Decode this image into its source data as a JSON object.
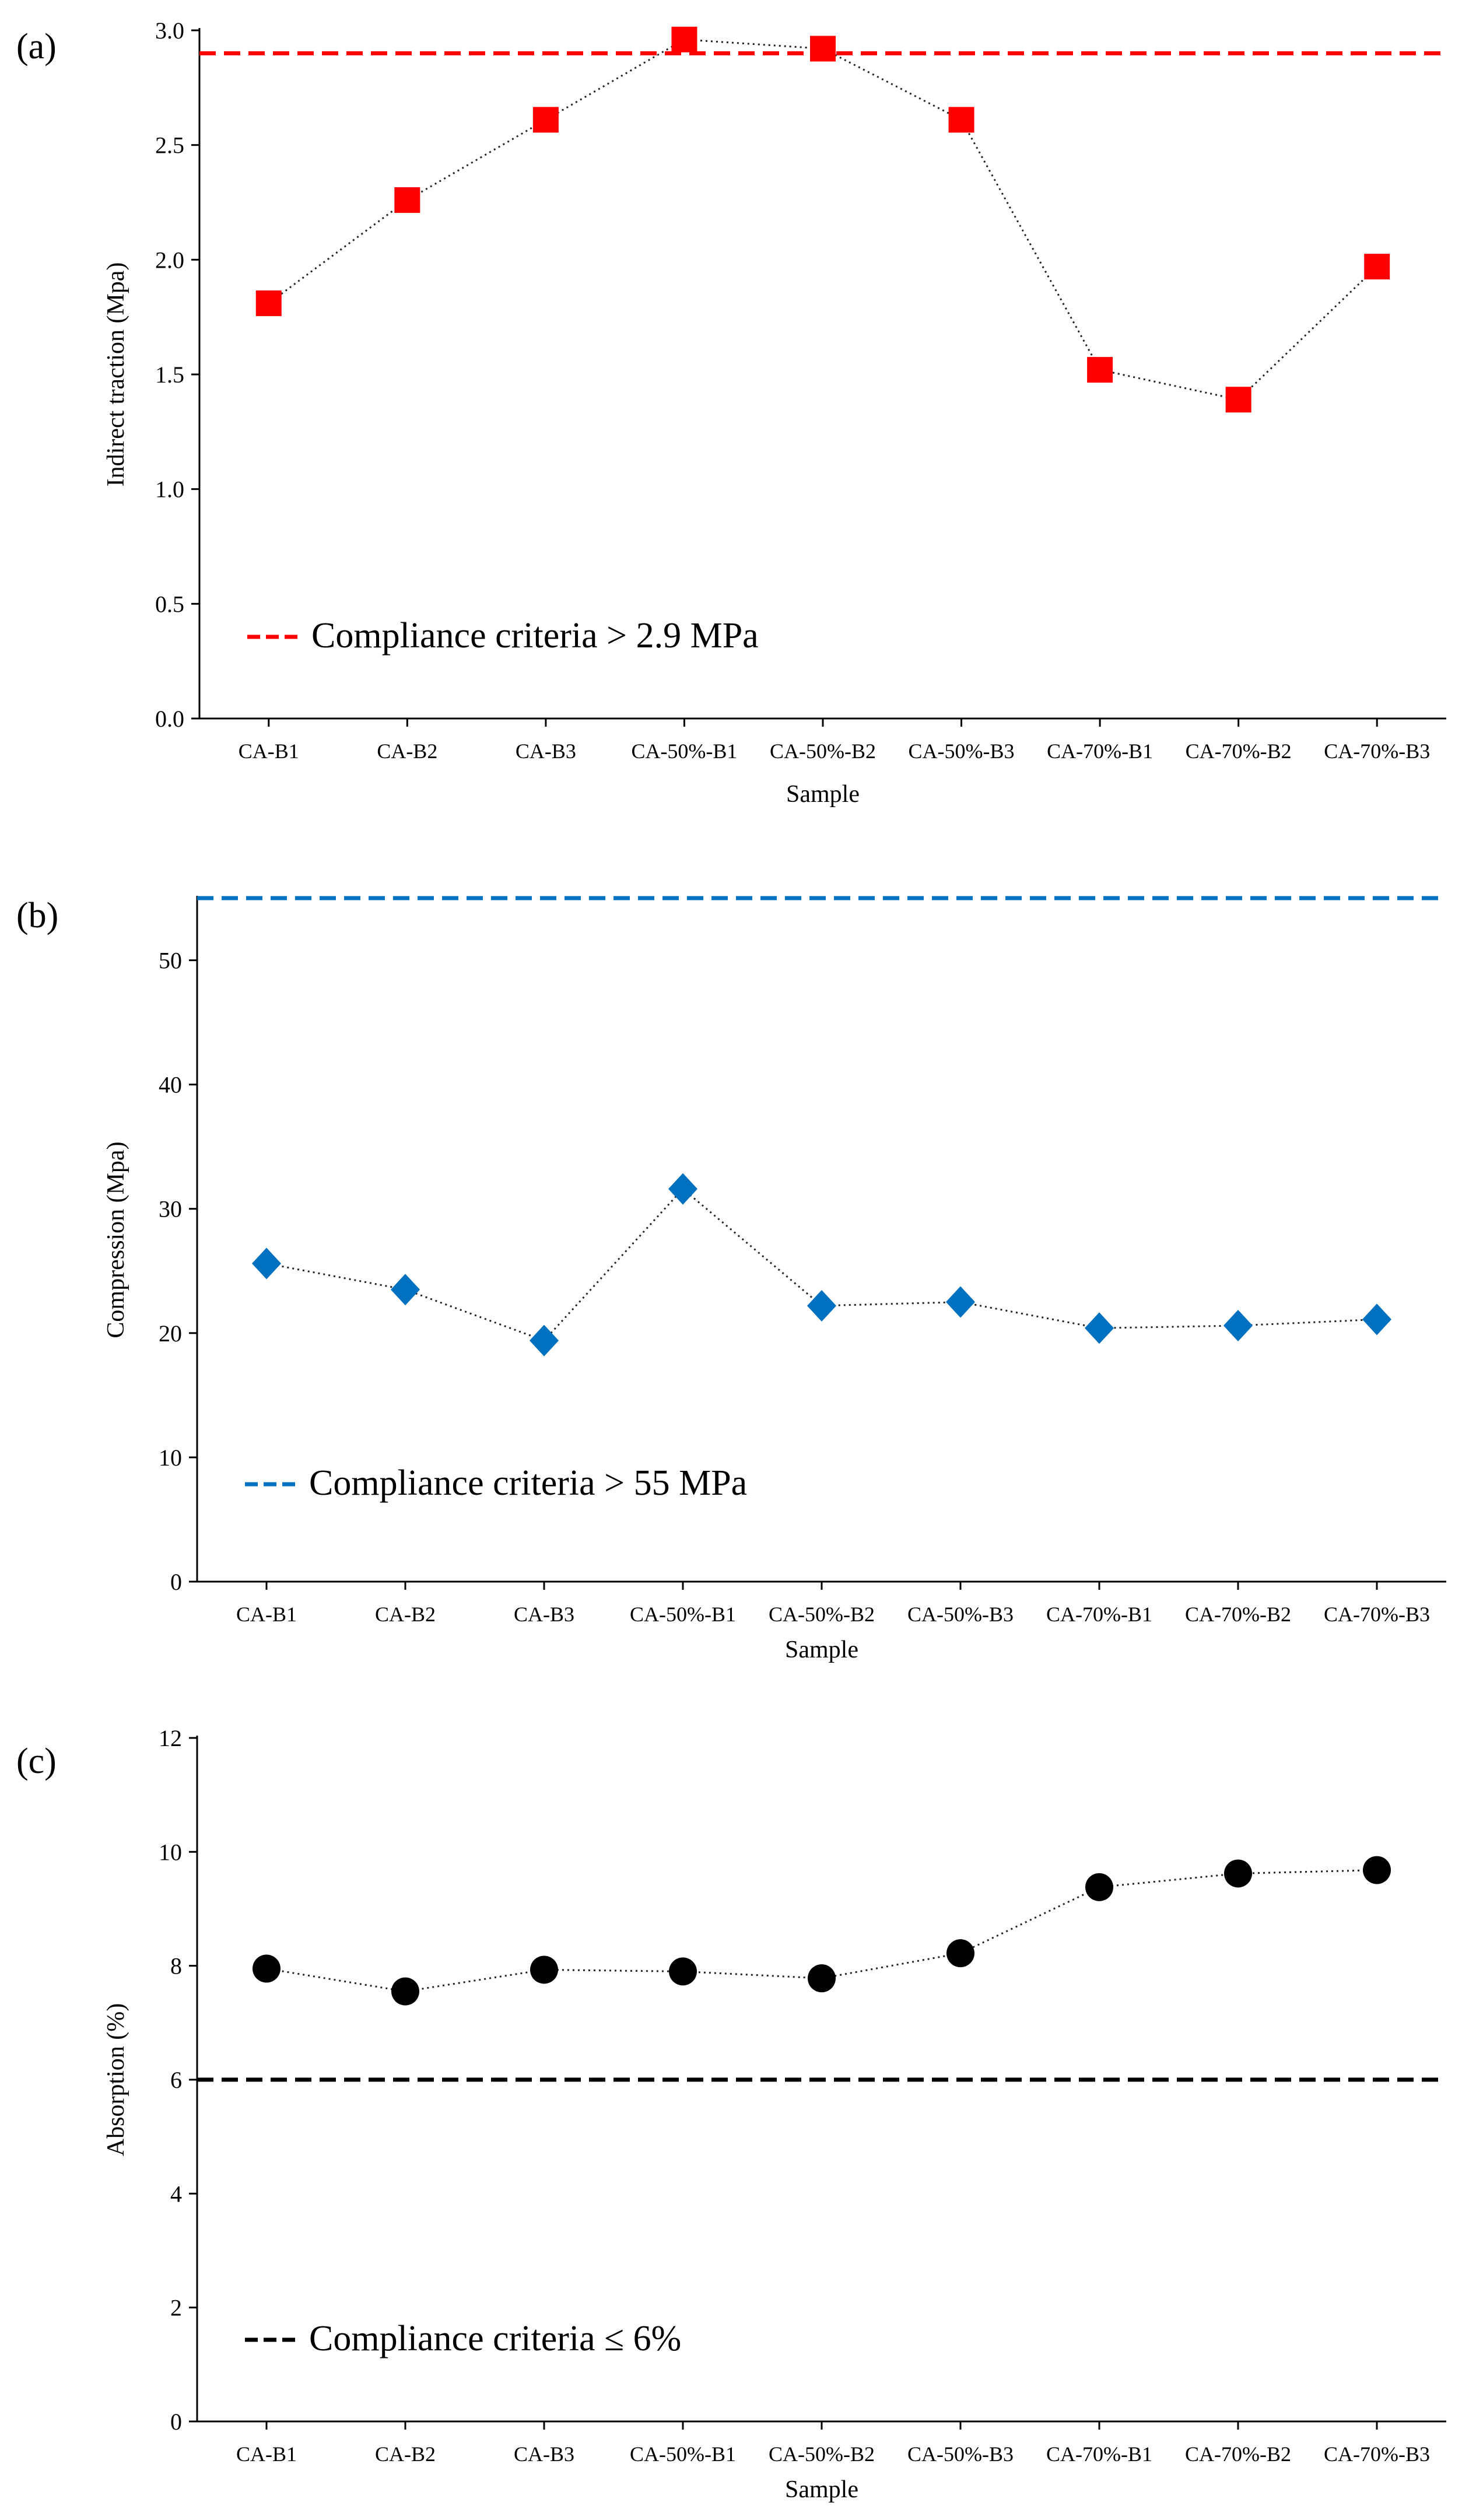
{
  "chart_data": [
    {
      "type": "line",
      "panel_label": "(a)",
      "categories": [
        "CA-B1",
        "CA-B2",
        "CA-B3",
        "CA-50%-B1",
        "CA-50%-B2",
        "CA-50%-B3",
        "CA-70%-B1",
        "CA-70%-B2",
        "CA-70%-B3"
      ],
      "series": [
        {
          "name": "Indirect traction",
          "values": [
            1.81,
            2.26,
            2.61,
            2.96,
            2.92,
            2.61,
            1.52,
            1.39,
            1.97
          ],
          "marker": "square",
          "color": "#ff0000"
        }
      ],
      "xlabel": "Sample",
      "ylabel": "Indirect traction (Mpa)",
      "ylim": [
        0,
        3.0
      ],
      "yticks": [
        "0.0",
        "0.5",
        "1.0",
        "1.5",
        "2.0",
        "2.5",
        "3.0"
      ],
      "reference_line": {
        "value": 2.9,
        "color": "#ff0000",
        "style": "dashed"
      },
      "legend": {
        "label": "Compliance criteria > 2.9 MPa",
        "placement": "bottom-left"
      }
    },
    {
      "type": "line",
      "panel_label": "(b)",
      "categories": [
        "CA-B1",
        "CA-B2",
        "CA-B3",
        "CA-50%-B1",
        "CA-50%-B2",
        "CA-50%-B3",
        "CA-70%-B1",
        "CA-70%-B2",
        "CA-70%-B3"
      ],
      "series": [
        {
          "name": "Compression",
          "values": [
            25.6,
            23.5,
            19.4,
            31.6,
            22.2,
            22.5,
            20.4,
            20.6,
            21.1
          ],
          "marker": "diamond",
          "color": "#0070c0"
        }
      ],
      "xlabel": "Sample",
      "ylabel": "Compression (Mpa)",
      "ylim": [
        0,
        55
      ],
      "yticks": [
        "0",
        "10",
        "20",
        "30",
        "40",
        "50"
      ],
      "reference_line": {
        "value": 55,
        "color": "#0070c0",
        "style": "dashed"
      },
      "legend": {
        "label": "Compliance criteria > 55 MPa",
        "placement": "bottom-left"
      }
    },
    {
      "type": "line",
      "panel_label": "(c)",
      "categories": [
        "CA-B1",
        "CA-B2",
        "CA-B3",
        "CA-50%-B1",
        "CA-50%-B2",
        "CA-50%-B3",
        "CA-70%-B1",
        "CA-70%-B2",
        "CA-70%-B3"
      ],
      "series": [
        {
          "name": "Absorption",
          "values": [
            7.95,
            7.55,
            7.93,
            7.9,
            7.78,
            8.22,
            9.38,
            9.62,
            9.68
          ],
          "marker": "circle",
          "color": "#000000"
        }
      ],
      "xlabel": "Sample",
      "ylabel": "Absorption (%)",
      "ylim": [
        0,
        12
      ],
      "yticks": [
        "0",
        "2",
        "4",
        "6",
        "8",
        "10",
        "12"
      ],
      "reference_line": {
        "value": 6,
        "color": "#000000",
        "style": "dashed"
      },
      "legend": {
        "label": "Compliance criteria ≤ 6%",
        "placement": "bottom-left"
      }
    }
  ]
}
